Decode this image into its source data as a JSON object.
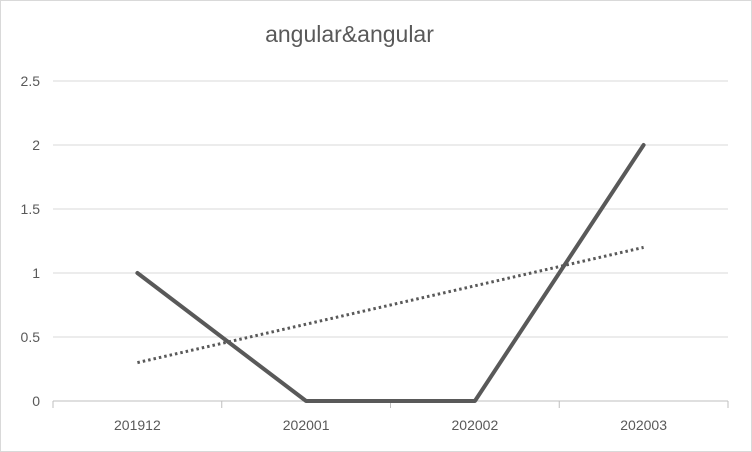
{
  "chart_data": {
    "type": "line",
    "title": "angular&angular",
    "categories": [
      "201912",
      "202001",
      "202002",
      "202003"
    ],
    "series": [
      {
        "values": [
          1,
          0,
          0,
          2
        ],
        "color": "#595959",
        "style": "solid"
      },
      {
        "values": [
          0.3,
          0.6,
          0.9,
          1.2
        ],
        "color": "#595959",
        "style": "dotted",
        "kind": "linear trendline"
      }
    ],
    "ylim": [
      0,
      2.5
    ],
    "yticks": [
      0,
      0.5,
      1,
      1.5,
      2,
      2.5
    ],
    "ytick_labels": [
      "0",
      "0.5",
      "1",
      "1.5",
      "2",
      "2.5"
    ],
    "grid": true,
    "legend": "none",
    "xlabel": "",
    "ylabel": ""
  }
}
